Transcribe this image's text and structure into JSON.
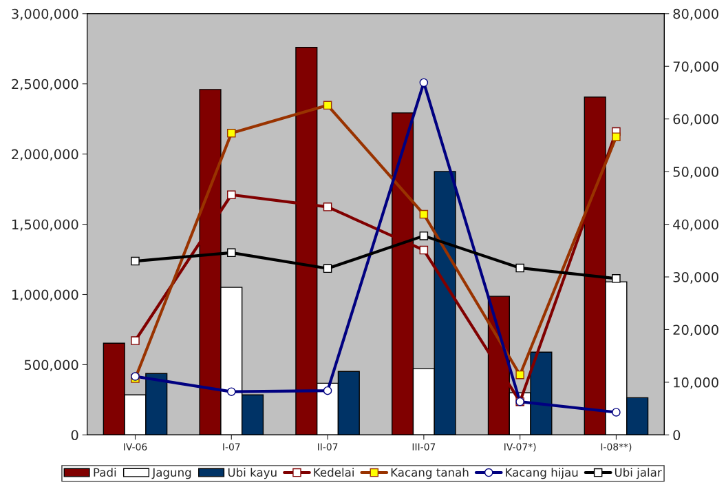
{
  "chart_data": {
    "type": "bar",
    "categories": [
      "IV-06",
      "I-07",
      "II-07",
      "III-07",
      "IV-07*)",
      "I-08**)"
    ],
    "series": [
      {
        "name": "Padi",
        "color": "#800000",
        "values": [
          653000,
          2460000,
          2760000,
          2293000,
          987000,
          2406000
        ]
      },
      {
        "name": "Jagung",
        "color": "#ffffff",
        "values": [
          285000,
          1051000,
          368000,
          471000,
          300000,
          1090000
        ]
      },
      {
        "name": "Ubi kayu",
        "color": "#003366",
        "values": [
          437000,
          285000,
          452000,
          1876000,
          589000,
          265000
        ]
      },
      {
        "name": "Kedelai",
        "type": "line",
        "axis": "y2",
        "color": "#800000",
        "marker": "square",
        "colors": [
          "#ffffff",
          "#ffffff",
          "#ffffff",
          "#ffffff",
          "#ffffff",
          "#ffffff"
        ],
        "values": [
          17900,
          45600,
          43300,
          35100,
          6300,
          57600
        ]
      },
      {
        "name": "Kacang tanah",
        "type": "line",
        "axis": "y2",
        "color": "#993300",
        "marker": "square",
        "colors": [
          "#ffff00",
          "#ffff00",
          "#ffff00",
          "#ffff00",
          "#ffff00",
          "#ffff00"
        ],
        "values": [
          10700,
          57300,
          62600,
          41900,
          11400,
          56600
        ]
      },
      {
        "name": "Kacang hijau",
        "type": "line",
        "axis": "y2",
        "color": "#000080",
        "marker": "circle",
        "colors": [
          "#ffffff",
          "#ffffff",
          "#ffffff",
          "#ffffff",
          "#ffffff",
          "#ffffff"
        ],
        "values": [
          11100,
          8200,
          8400,
          66900,
          6300,
          4300
        ]
      },
      {
        "name": "Ubi jalar",
        "type": "line",
        "axis": "y2",
        "color": "#000000",
        "marker": "square",
        "colors": [
          "#ffffff",
          "#ffffff",
          "#ffffff",
          "#ffffff",
          "#ffffff",
          "#ffffff"
        ],
        "values": [
          33000,
          34600,
          31600,
          37800,
          31700,
          29700
        ]
      }
    ],
    "ylim": [
      0,
      3000000
    ],
    "yticks": [
      0,
      {
        "value": 500000,
        "label": "500,000"
      },
      {
        "value": 1000000,
        "label": "1,000,000"
      },
      {
        "value": 1500000,
        "label": "1,500,000"
      },
      {
        "value": 2000000,
        "label": "2,000,000"
      },
      {
        "value": 2500000,
        "label": "2,500,000"
      },
      {
        "value": 3000000,
        "label": "3,000,000"
      }
    ],
    "y2lim": [
      0,
      80000
    ],
    "y2ticks": [
      0,
      {
        "value": 10000,
        "label": "10,000"
      },
      {
        "value": 20000,
        "label": "20,000"
      },
      {
        "value": 30000,
        "label": "30,000"
      },
      {
        "value": 40000,
        "label": "40,000"
      },
      {
        "value": 50000,
        "label": "50,000"
      },
      {
        "value": 60000,
        "label": "60,000"
      },
      {
        "value": 70000,
        "label": "70,000"
      },
      {
        "value": 80000,
        "label": "80,000"
      }
    ],
    "grid": false,
    "legend": "bottom"
  }
}
